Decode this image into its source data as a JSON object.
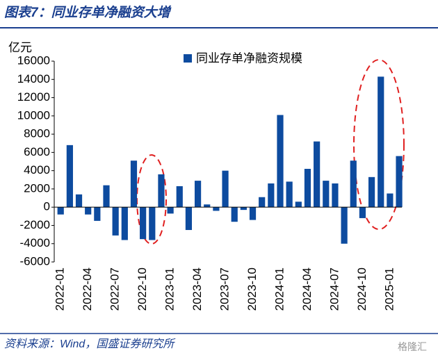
{
  "header": {
    "title": "图表7：同业存单净融资大增"
  },
  "chart_data": {
    "type": "bar",
    "y_label": "亿元",
    "categories": [
      "2022-01",
      null,
      null,
      "2022-04",
      null,
      null,
      "2022-07",
      null,
      null,
      "2022-10",
      null,
      null,
      "2023-01",
      null,
      null,
      "2023-04",
      null,
      null,
      "2023-07",
      null,
      null,
      "2023-10",
      null,
      null,
      "2024-01",
      null,
      null,
      "2024-04",
      null,
      null,
      "2024-07",
      null,
      null,
      "2024-10",
      null,
      null,
      "2025-01",
      null
    ],
    "series": [
      {
        "name": "同业存单净融资规模",
        "color": "#0d4b9f",
        "values": [
          -800,
          6800,
          1400,
          -800,
          -1500,
          2400,
          -3100,
          -3600,
          5100,
          -3500,
          -3600,
          3600,
          -700,
          2300,
          -2500,
          2900,
          300,
          -400,
          4000,
          -1600,
          -300,
          -1400,
          1100,
          2600,
          10100,
          2800,
          600,
          4200,
          7200,
          2900,
          2600,
          -4000,
          5100,
          -1200,
          3300,
          14300,
          1500,
          5600
        ]
      }
    ],
    "ylim": [
      -6000,
      16000
    ],
    "yticks": [
      -6000,
      -4000,
      -2000,
      0,
      2000,
      4000,
      6000,
      8000,
      10000,
      12000,
      14000,
      16000
    ],
    "legend": "top"
  },
  "footer": {
    "source": "资料来源：Wind，国盛证券研究所",
    "watermark": "格隆汇"
  }
}
